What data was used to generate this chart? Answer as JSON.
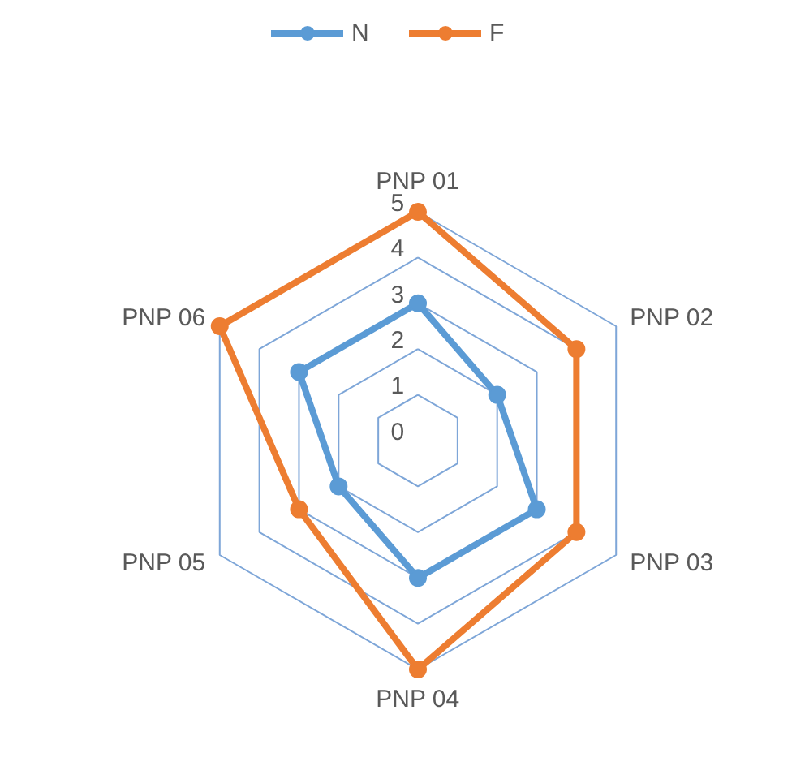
{
  "chart_data": {
    "type": "radar",
    "categories": [
      "PNP 01",
      "PNP 02",
      "PNP 03",
      "PNP 04",
      "PNP 05",
      "PNP 06"
    ],
    "series": [
      {
        "name": "N",
        "color": "#5b9bd5",
        "values": [
          3,
          2,
          3,
          3,
          2,
          3
        ]
      },
      {
        "name": "F",
        "color": "#ed7d31",
        "values": [
          5,
          4,
          4,
          5,
          3,
          5
        ]
      }
    ],
    "ylim": [
      0,
      5
    ],
    "yticks": [
      0,
      1,
      2,
      3,
      4,
      5
    ],
    "grid": true,
    "legend": "top",
    "marker": "circle"
  }
}
